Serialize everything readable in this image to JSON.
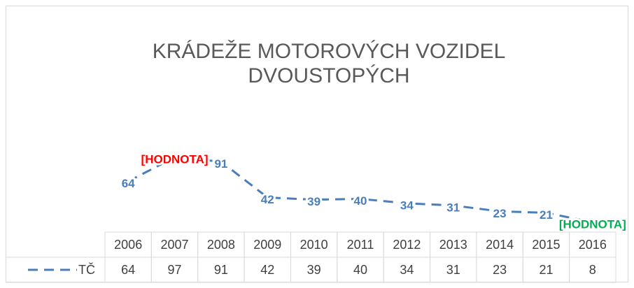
{
  "chart_data": {
    "type": "line",
    "title": [
      "KRÁDEŽE MOTOROVÝCH VOZIDEL",
      "DVOUSTOPÝCH"
    ],
    "categories": [
      "2006",
      "2007",
      "2008",
      "2009",
      "2010",
      "2011",
      "2012",
      "2013",
      "2014",
      "2015",
      "2016"
    ],
    "series": [
      {
        "name": "TČ",
        "color": "#4a7ebb",
        "values": [
          64,
          97,
          91,
          42,
          39,
          40,
          34,
          31,
          23,
          21,
          8
        ],
        "value_labels": [
          "64",
          "[HODNOTA]",
          "91",
          "42",
          "39",
          "40",
          "34",
          "31",
          "23",
          "21",
          "[HODNOTA]"
        ],
        "value_label_colors": [
          "#4a7ebb",
          "#ff0000",
          "#4a7ebb",
          "#4a7ebb",
          "#4a7ebb",
          "#4a7ebb",
          "#4a7ebb",
          "#4a7ebb",
          "#4a7ebb",
          "#4a7ebb",
          "#00b050"
        ]
      }
    ],
    "data_table": true
  }
}
